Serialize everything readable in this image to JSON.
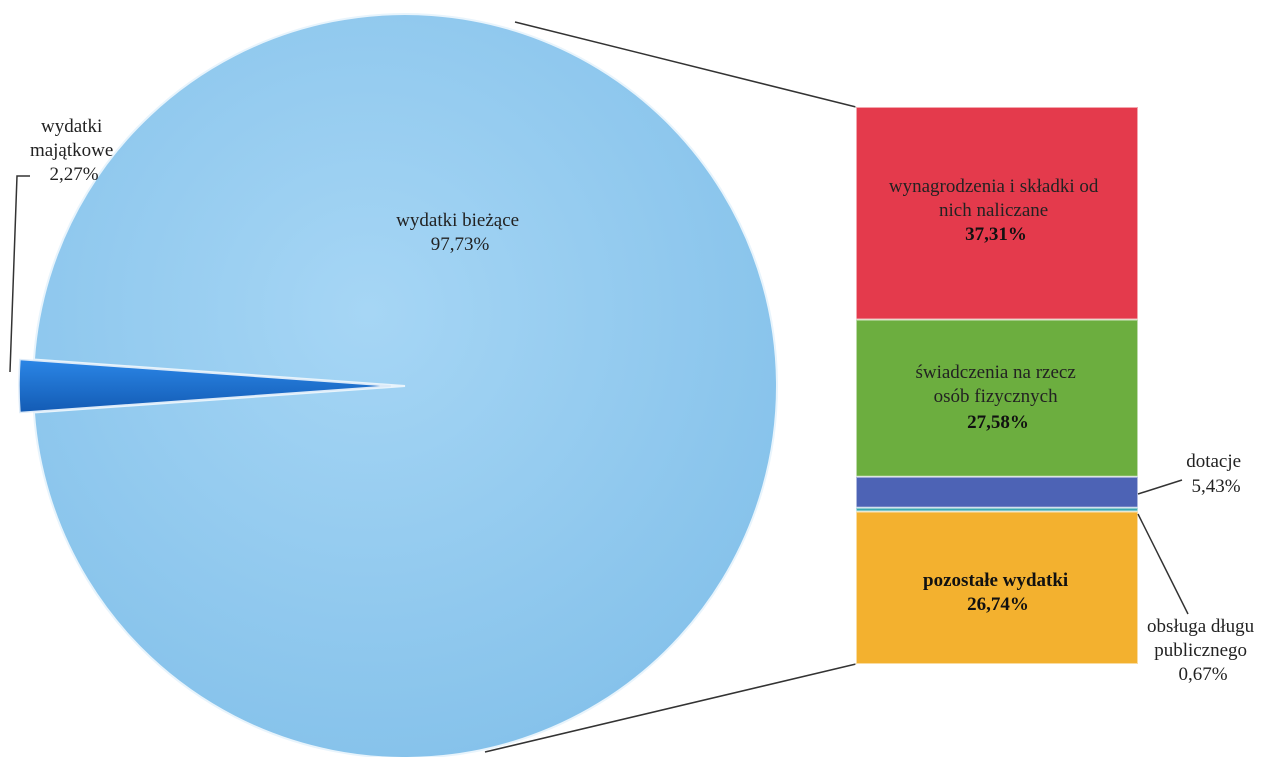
{
  "chart_data": {
    "type": "bar-of-pie",
    "pie": {
      "slices": [
        {
          "label": "wydatki bieżące",
          "value_label": "97,73%",
          "value": 97.73,
          "color": "#8ec8ee"
        },
        {
          "label": "wydatki majątkowe",
          "label_lines": [
            "wydatki",
            "majątkowe"
          ],
          "value_label": "2,27%",
          "value": 2.27,
          "color": "#1f6fd0"
        }
      ]
    },
    "bar": {
      "segments": [
        {
          "label_lines": [
            "wynagrodzenia i składki od",
            "nich naliczane"
          ],
          "value_label": "37,31%",
          "value": 37.31,
          "color": "#e43a4c"
        },
        {
          "label_lines": [
            "świadczenia na rzecz",
            "osób fizycznych"
          ],
          "value_label": "27,58%",
          "value": 27.58,
          "color": "#6cae3f"
        },
        {
          "label_lines": [
            "dotacje"
          ],
          "value_label": "5,43%",
          "value": 5.43,
          "color": "#4d63b5"
        },
        {
          "label_lines": [
            "obsługa długu",
            "publicznego"
          ],
          "value_label": "0,67%",
          "value": 0.67,
          "color": "#3aa8b0"
        },
        {
          "label_lines": [
            "pozostałe wydatki"
          ],
          "value_label": "26,74%",
          "value": 26.74,
          "color": "#f3b12f"
        }
      ]
    }
  }
}
